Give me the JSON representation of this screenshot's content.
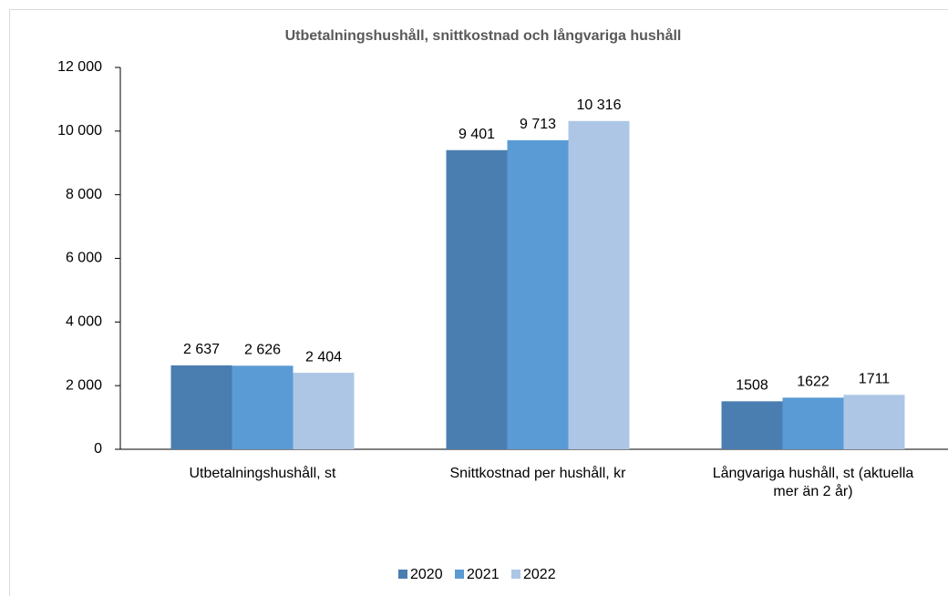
{
  "chart_data": {
    "type": "bar",
    "title": "Utbetalningshushåll, snittkostnad och långvariga hushåll",
    "categories": [
      "Utbetalningshushåll, st",
      "Snittkostnad per hushåll, kr",
      "Långvariga hushåll, st (aktuella mer än 2 år)"
    ],
    "series": [
      {
        "name": "2020",
        "color": "#4a7eb0",
        "values": [
          2637,
          9401,
          1508
        ],
        "value_labels": [
          "2 637",
          "9 401",
          "1508"
        ]
      },
      {
        "name": "2021",
        "color": "#5b9bd5",
        "values": [
          2626,
          9713,
          1622
        ],
        "value_labels": [
          "2 626",
          "9 713",
          "1622"
        ]
      },
      {
        "name": "2022",
        "color": "#adc6e6",
        "values": [
          2404,
          10316,
          1711
        ],
        "value_labels": [
          "2 404",
          "10 316",
          "1711"
        ]
      }
    ],
    "ylim": [
      0,
      12000
    ],
    "yticks": [
      0,
      {
        "value": 2000,
        "label": "2 000"
      },
      {
        "value": 4000,
        "label": "4 000"
      },
      {
        "value": 6000,
        "label": "6 000"
      },
      {
        "value": 8000,
        "label": "8 000"
      },
      {
        "value": 10000,
        "label": "10 000"
      },
      {
        "value": 12000,
        "label": "12 000"
      }
    ],
    "grid": false,
    "legend": "bottom"
  }
}
